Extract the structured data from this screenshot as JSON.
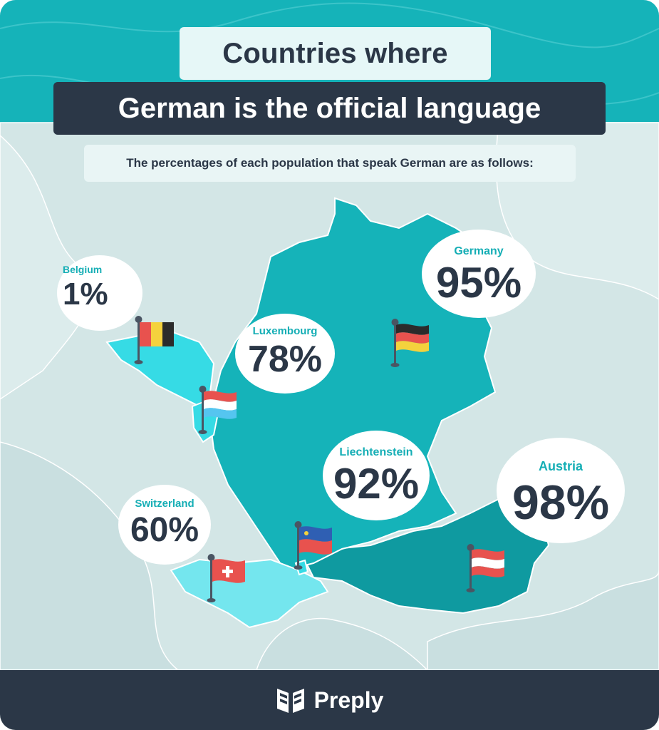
{
  "header": {
    "title_line1": "Countries where",
    "title_line2": "German is the official language",
    "subtitle": "The percentages of each population that speak German are as follows:"
  },
  "countries": [
    {
      "name": "Belgium",
      "percent": "1%",
      "value": 1
    },
    {
      "name": "Luxembourg",
      "percent": "78%",
      "value": 78
    },
    {
      "name": "Germany",
      "percent": "95%",
      "value": 95
    },
    {
      "name": "Liechtenstein",
      "percent": "92%",
      "value": 92
    },
    {
      "name": "Austria",
      "percent": "98%",
      "value": 98
    },
    {
      "name": "Switzerland",
      "percent": "60%",
      "value": 60
    }
  ],
  "footer": {
    "brand": "Preply"
  },
  "colors": {
    "teal": "#15b3b9",
    "germany": "#15b3b9",
    "austria": "#0f9aa0",
    "belgium": "#36dbe5",
    "switzerland": "#74e6ee",
    "dark": "#2b3747",
    "background": "#cfe3e4"
  },
  "icons": [
    "flag-belgium-icon",
    "flag-luxembourg-icon",
    "flag-germany-icon",
    "flag-liechtenstein-icon",
    "flag-austria-icon",
    "flag-switzerland-icon",
    "preply-logo-icon"
  ]
}
